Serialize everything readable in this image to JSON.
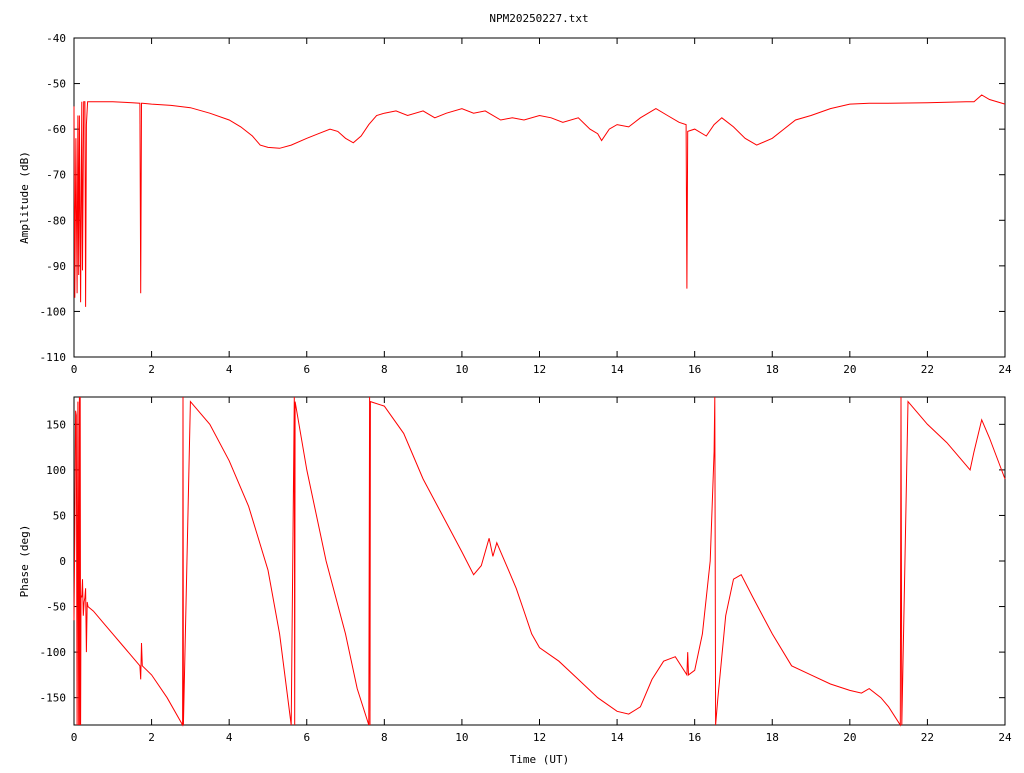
{
  "colors": {
    "trace": "#ff0000",
    "axes": "#000000",
    "background": "#ffffff"
  },
  "chart_data": [
    {
      "type": "line",
      "title": "NPM20250227.txt",
      "xlabel": "",
      "ylabel": "Amplitude (dB)",
      "xlim": [
        0,
        24
      ],
      "ylim": [
        -110,
        -40
      ],
      "x_ticks": [
        0,
        2,
        4,
        6,
        8,
        10,
        12,
        14,
        16,
        18,
        20,
        22,
        24
      ],
      "y_ticks": [
        -110,
        -100,
        -90,
        -80,
        -70,
        -60,
        -50,
        -40
      ],
      "grid": false,
      "series": [
        {
          "x": [
            0,
            0.02,
            0.05,
            0.08,
            0.1,
            0.12,
            0.14,
            0.17,
            0.2,
            0.22,
            0.25,
            0.28,
            0.3,
            0.32,
            0.35,
            0.37,
            0.4,
            0.6,
            1.0,
            1.5,
            1.7,
            1.72,
            1.74,
            1.76,
            2.0,
            2.5,
            3.0,
            3.5,
            4.0,
            4.3,
            4.6,
            4.8,
            5.0,
            5.3,
            5.6,
            6.0,
            6.3,
            6.6,
            6.8,
            7.0,
            7.2,
            7.4,
            7.6,
            7.8,
            8.0,
            8.3,
            8.6,
            9.0,
            9.3,
            9.6,
            10.0,
            10.3,
            10.6,
            11.0,
            11.3,
            11.6,
            12.0,
            12.3,
            12.6,
            13.0,
            13.3,
            13.5,
            13.6,
            13.8,
            14.0,
            14.3,
            14.6,
            15.0,
            15.3,
            15.6,
            15.78,
            15.8,
            15.82,
            16.0,
            16.3,
            16.5,
            16.7,
            17.0,
            17.3,
            17.6,
            18.0,
            18.3,
            18.6,
            19.0,
            19.5,
            20.0,
            20.5,
            21.0,
            22.0,
            23.0,
            23.2,
            23.4,
            23.6,
            24.0
          ],
          "y": [
            -55,
            -97,
            -62,
            -96,
            -57,
            -92,
            -57,
            -98,
            -54,
            -91,
            -54,
            -54,
            -99,
            -59,
            -54,
            -54,
            -54,
            -54,
            -54,
            -54.2,
            -54.3,
            -96,
            -54.3,
            -54.3,
            -54.5,
            -54.8,
            -55.3,
            -56.5,
            -58,
            -59.5,
            -61.5,
            -63.5,
            -64,
            -64.2,
            -63.5,
            -62,
            -61,
            -60,
            -60.5,
            -62,
            -63,
            -61.5,
            -59,
            -57,
            -56.5,
            -56,
            -57,
            -56,
            -57.5,
            -56.5,
            -55.5,
            -56.5,
            -56,
            -58,
            -57.5,
            -58,
            -57,
            -57.5,
            -58.5,
            -57.5,
            -60,
            -61,
            -62.5,
            -60,
            -59,
            -59.5,
            -57.5,
            -55.5,
            -57,
            -58.5,
            -59,
            -95,
            -60.5,
            -60,
            -61.5,
            -59,
            -57.5,
            -59.5,
            -62,
            -63.5,
            -62,
            -60,
            -58,
            -57,
            -55.5,
            -54.5,
            -54.3,
            -54.3,
            -54.2,
            -54,
            -54,
            -52.5,
            -53.5,
            -54.5
          ]
        }
      ]
    },
    {
      "type": "line",
      "title": "",
      "xlabel": "Time (UT)",
      "ylabel": "Phase (deg)",
      "xlim": [
        0,
        24
      ],
      "ylim": [
        -180,
        180
      ],
      "x_ticks": [
        0,
        2,
        4,
        6,
        8,
        10,
        12,
        14,
        16,
        18,
        20,
        22,
        24
      ],
      "y_ticks": [
        -150,
        -100,
        -50,
        0,
        50,
        100,
        150
      ],
      "grid": false,
      "series": [
        {
          "x": [
            0,
            0.02,
            0.04,
            0.06,
            0.08,
            0.1,
            0.12,
            0.14,
            0.15,
            0.16,
            0.17,
            0.18,
            0.2,
            0.22,
            0.24,
            0.26,
            0.28,
            0.3,
            0.32,
            0.34,
            0.36,
            0.5,
            0.8,
            1.2,
            1.7,
            1.72,
            1.74,
            1.76,
            2.0,
            2.4,
            2.8,
            2.81,
            2.82,
            3.0,
            3.5,
            4.0,
            4.5,
            5.0,
            5.3,
            5.6,
            5.68,
            5.69,
            5.7,
            6.0,
            6.5,
            7.0,
            7.3,
            7.6,
            7.62,
            7.63,
            7.64,
            8.0,
            8.5,
            9.0,
            9.5,
            10.0,
            10.3,
            10.5,
            10.7,
            10.8,
            10.9,
            11.0,
            11.2,
            11.4,
            11.6,
            11.8,
            12.0,
            12.5,
            13.0,
            13.5,
            14.0,
            14.3,
            14.6,
            14.9,
            15.2,
            15.5,
            15.8,
            15.82,
            15.84,
            16.0,
            16.2,
            16.4,
            16.5,
            16.52,
            16.54,
            16.6,
            16.8,
            17.0,
            17.2,
            17.5,
            18.0,
            18.5,
            19.0,
            19.5,
            20.0,
            20.3,
            20.5,
            20.8,
            21.0,
            21.3,
            21.32,
            21.34,
            21.5,
            22.0,
            22.5,
            23.0,
            23.1,
            23.2,
            23.4,
            23.6,
            24.0
          ],
          "y": [
            -65,
            30,
            165,
            160,
            -180,
            175,
            -180,
            180,
            -180,
            180,
            -180,
            -38,
            -40,
            -20,
            -60,
            -45,
            -40,
            -30,
            -100,
            -45,
            -50,
            -55,
            -70,
            -90,
            -115,
            -130,
            -90,
            -115,
            -125,
            -150,
            -180,
            180,
            -180,
            175,
            150,
            110,
            60,
            -10,
            -80,
            -180,
            180,
            -180,
            175,
            100,
            0,
            -80,
            -140,
            -180,
            180,
            -180,
            175,
            170,
            140,
            90,
            50,
            10,
            -15,
            -5,
            25,
            5,
            20,
            10,
            -10,
            -30,
            -55,
            -80,
            -95,
            -110,
            -130,
            -150,
            -165,
            -168,
            -160,
            -130,
            -110,
            -105,
            -125,
            -100,
            -125,
            -120,
            -80,
            0,
            120,
            180,
            -180,
            -150,
            -60,
            -20,
            -15,
            -40,
            -80,
            -115,
            -125,
            -135,
            -142,
            -145,
            -140,
            -150,
            -160,
            -180,
            180,
            -180,
            175,
            150,
            130,
            105,
            100,
            120,
            155,
            135,
            90
          ]
        }
      ]
    }
  ]
}
